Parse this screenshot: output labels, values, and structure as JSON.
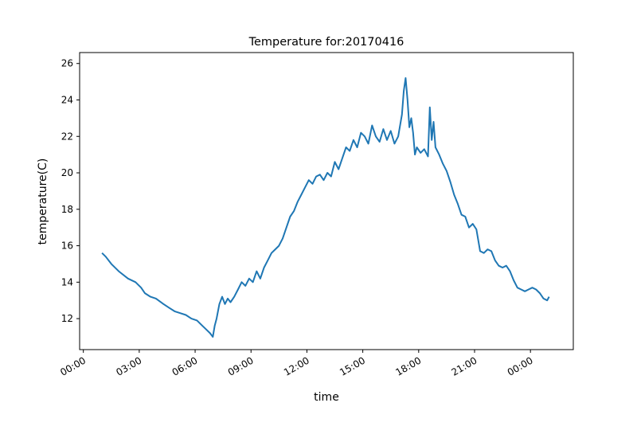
{
  "chart_data": {
    "type": "line",
    "title": "Temperature for:20170416",
    "xlabel": "time",
    "ylabel": "temperature(C)",
    "x_unit": "hours",
    "xlim": [
      -0.2,
      26.3
    ],
    "ylim": [
      10.3,
      26.6
    ],
    "x_ticks": [
      {
        "value": 0,
        "label": "00:00"
      },
      {
        "value": 3,
        "label": "03:00"
      },
      {
        "value": 6,
        "label": "06:00"
      },
      {
        "value": 9,
        "label": "09:00"
      },
      {
        "value": 12,
        "label": "12:00"
      },
      {
        "value": 15,
        "label": "15:00"
      },
      {
        "value": 18,
        "label": "18:00"
      },
      {
        "value": 21,
        "label": "21:00"
      },
      {
        "value": 24,
        "label": "00:00"
      }
    ],
    "y_ticks": [
      {
        "value": 12,
        "label": "12"
      },
      {
        "value": 14,
        "label": "14"
      },
      {
        "value": 16,
        "label": "16"
      },
      {
        "value": 18,
        "label": "18"
      },
      {
        "value": 20,
        "label": "20"
      },
      {
        "value": 22,
        "label": "22"
      },
      {
        "value": 24,
        "label": "24"
      },
      {
        "value": 26,
        "label": "26"
      }
    ],
    "grid": false,
    "legend": "none",
    "series": [
      {
        "color": "#1f77b4",
        "x": [
          1.0,
          1.2,
          1.5,
          1.9,
          2.4,
          2.8,
          3.1,
          3.3,
          3.6,
          3.9,
          4.3,
          4.6,
          4.9,
          5.2,
          5.5,
          5.8,
          6.1,
          6.4,
          6.6,
          6.8,
          6.95,
          7.05,
          7.15,
          7.3,
          7.45,
          7.6,
          7.75,
          7.9,
          8.1,
          8.3,
          8.5,
          8.7,
          8.9,
          9.1,
          9.3,
          9.5,
          9.7,
          9.9,
          10.1,
          10.3,
          10.5,
          10.7,
          10.9,
          11.1,
          11.3,
          11.5,
          11.7,
          11.9,
          12.1,
          12.3,
          12.5,
          12.7,
          12.9,
          13.1,
          13.3,
          13.5,
          13.7,
          13.9,
          14.1,
          14.3,
          14.5,
          14.7,
          14.9,
          15.1,
          15.3,
          15.5,
          15.7,
          15.9,
          16.1,
          16.3,
          16.5,
          16.7,
          16.9,
          17.1,
          17.2,
          17.3,
          17.4,
          17.5,
          17.6,
          17.7,
          17.8,
          17.9,
          18.1,
          18.3,
          18.5,
          18.6,
          18.7,
          18.8,
          18.9,
          19.1,
          19.3,
          19.5,
          19.7,
          19.9,
          20.1,
          20.3,
          20.5,
          20.7,
          20.9,
          21.1,
          21.3,
          21.5,
          21.7,
          21.9,
          22.1,
          22.3,
          22.5,
          22.7,
          22.9,
          23.1,
          23.3,
          23.5,
          23.7,
          23.9,
          24.1,
          24.3,
          24.5,
          24.7,
          24.9,
          25.0
        ],
        "y": [
          15.6,
          15.4,
          15.0,
          14.6,
          14.2,
          14.0,
          13.7,
          13.4,
          13.2,
          13.1,
          12.8,
          12.6,
          12.4,
          12.3,
          12.2,
          12.0,
          11.9,
          11.6,
          11.4,
          11.2,
          11.0,
          11.6,
          12.0,
          12.8,
          13.2,
          12.8,
          13.1,
          12.9,
          13.2,
          13.6,
          14.0,
          13.8,
          14.2,
          14.0,
          14.6,
          14.2,
          14.8,
          15.2,
          15.6,
          15.8,
          16.0,
          16.4,
          17.0,
          17.6,
          17.9,
          18.4,
          18.8,
          19.2,
          19.6,
          19.4,
          19.8,
          19.9,
          19.6,
          20.0,
          19.8,
          20.6,
          20.2,
          20.8,
          21.4,
          21.2,
          21.8,
          21.4,
          22.2,
          22.0,
          21.6,
          22.6,
          22.0,
          21.7,
          22.4,
          21.8,
          22.3,
          21.6,
          22.0,
          23.2,
          24.5,
          25.2,
          24.0,
          22.5,
          23.0,
          22.2,
          21.0,
          21.4,
          21.1,
          21.3,
          20.9,
          23.6,
          21.8,
          22.8,
          21.4,
          21.0,
          20.5,
          20.1,
          19.5,
          18.8,
          18.3,
          17.7,
          17.6,
          17.0,
          17.2,
          16.9,
          15.7,
          15.6,
          15.8,
          15.7,
          15.2,
          14.9,
          14.8,
          14.9,
          14.6,
          14.1,
          13.7,
          13.6,
          13.5,
          13.6,
          13.7,
          13.6,
          13.4,
          13.1,
          13.0,
          13.2
        ]
      }
    ]
  }
}
